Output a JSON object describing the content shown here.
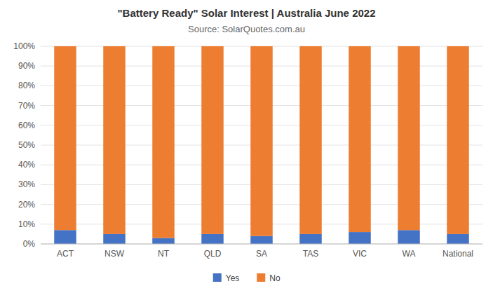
{
  "chart_data": {
    "type": "bar",
    "stacked": true,
    "title": "\"Battery Ready\" Solar Interest  |  Australia June 2022",
    "subtitle": "Source: SolarQuotes.com.au",
    "categories": [
      "ACT",
      "NSW",
      "NT",
      "QLD",
      "SA",
      "TAS",
      "VIC",
      "WA",
      "National"
    ],
    "series": [
      {
        "name": "Yes",
        "color": "#4472C4",
        "values": [
          7,
          5,
          3,
          5,
          4,
          5,
          6,
          7,
          5
        ]
      },
      {
        "name": "No",
        "color": "#ED7D31",
        "values": [
          93,
          95,
          97,
          95,
          96,
          95,
          94,
          93,
          95
        ]
      }
    ],
    "ylim": [
      0,
      100
    ],
    "yticks": [
      {
        "value": 0,
        "label": "0%"
      },
      {
        "value": 10,
        "label": "10%"
      },
      {
        "value": 20,
        "label": "20%"
      },
      {
        "value": 30,
        "label": "30%"
      },
      {
        "value": 40,
        "label": "40%"
      },
      {
        "value": 50,
        "label": "50%"
      },
      {
        "value": 60,
        "label": "60%"
      },
      {
        "value": 70,
        "label": "70%"
      },
      {
        "value": 80,
        "label": "80%"
      },
      {
        "value": 90,
        "label": "90%"
      },
      {
        "value": 100,
        "label": "100%"
      }
    ],
    "grid": true,
    "legend": "bottom"
  }
}
